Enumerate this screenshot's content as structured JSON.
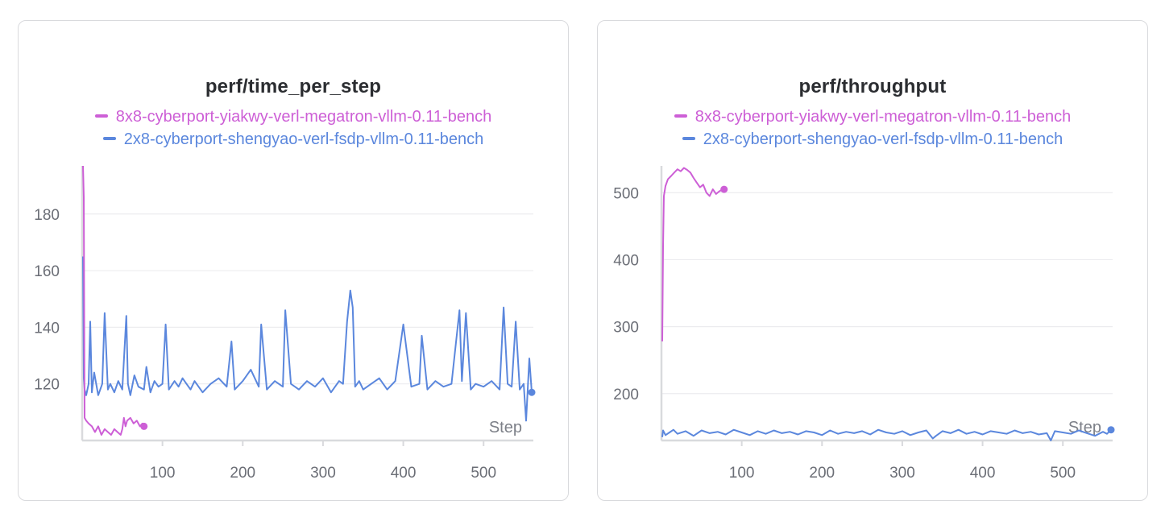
{
  "colors": {
    "series_magenta": "#cd5fd6",
    "series_blue": "#5b87dd",
    "grid": "#ececef",
    "axis": "#d9dadd"
  },
  "chart_data": [
    {
      "type": "line",
      "title": "perf/time_per_step",
      "xlabel": "Step",
      "ylabel": "",
      "xlim": [
        0,
        562
      ],
      "ylim": [
        100,
        197
      ],
      "xticks": [
        100,
        200,
        300,
        400,
        500
      ],
      "yticks": [
        120,
        140,
        160,
        180
      ],
      "grid": true,
      "legend_position": "top-center",
      "series": [
        {
          "name": "8x8-cyberport-yiakwy-verl-megatron-vllm-0.11-bench",
          "color": "#cd5fd6",
          "x": [
            1,
            2,
            3,
            5,
            8,
            12,
            16,
            20,
            24,
            28,
            32,
            36,
            40,
            44,
            48,
            50,
            52,
            54,
            56,
            60,
            64,
            68,
            72,
            75,
            77
          ],
          "y": [
            197,
            186,
            108,
            107,
            106,
            105,
            103,
            105,
            102,
            104,
            103,
            102,
            104,
            103,
            102,
            104,
            108,
            105,
            107,
            108,
            106,
            107,
            105,
            106,
            105
          ]
        },
        {
          "name": "2x8-cyberport-shengyao-verl-fsdp-vllm-0.11-bench",
          "color": "#5b87dd",
          "x": [
            1,
            2,
            3,
            5,
            8,
            10,
            12,
            15,
            20,
            25,
            28,
            32,
            35,
            40,
            45,
            50,
            55,
            57,
            60,
            65,
            70,
            77,
            80,
            85,
            90,
            95,
            100,
            104,
            108,
            115,
            120,
            125,
            130,
            135,
            140,
            150,
            160,
            170,
            180,
            186,
            190,
            200,
            210,
            220,
            223,
            230,
            240,
            250,
            253,
            260,
            270,
            280,
            290,
            300,
            310,
            320,
            325,
            330,
            334,
            337,
            340,
            345,
            350,
            360,
            370,
            380,
            390,
            400,
            410,
            420,
            423,
            430,
            440,
            450,
            460,
            470,
            473,
            478,
            484,
            490,
            500,
            510,
            520,
            525,
            530,
            535,
            540,
            545,
            550,
            553,
            557,
            560
          ],
          "y": [
            165,
            122,
            118,
            116,
            120,
            142,
            117,
            124,
            116,
            120,
            145,
            118,
            120,
            117,
            121,
            118,
            144,
            120,
            116,
            123,
            119,
            118,
            126,
            117,
            121,
            119,
            120,
            141,
            118,
            121,
            119,
            122,
            120,
            118,
            121,
            117,
            120,
            122,
            119,
            135,
            118,
            121,
            125,
            119,
            141,
            118,
            121,
            119,
            146,
            120,
            118,
            121,
            119,
            122,
            117,
            121,
            120,
            142,
            153,
            147,
            119,
            121,
            118,
            120,
            122,
            118,
            121,
            141,
            119,
            120,
            137,
            118,
            121,
            119,
            120,
            146,
            121,
            145,
            118,
            120,
            119,
            121,
            118,
            147,
            120,
            119,
            142,
            118,
            120,
            107,
            129,
            117
          ]
        }
      ]
    },
    {
      "type": "line",
      "title": "perf/throughput",
      "xlabel": "Step",
      "ylabel": "",
      "xlim": [
        0,
        562
      ],
      "ylim": [
        130,
        540
      ],
      "xticks": [
        100,
        200,
        300,
        400,
        500
      ],
      "yticks": [
        200,
        300,
        400,
        500
      ],
      "grid": true,
      "legend_position": "top-center",
      "series": [
        {
          "name": "8x8-cyberport-yiakwy-verl-megatron-vllm-0.11-bench",
          "color": "#cd5fd6",
          "x": [
            1,
            2,
            3,
            5,
            8,
            12,
            16,
            20,
            24,
            28,
            32,
            36,
            40,
            44,
            48,
            52,
            56,
            60,
            64,
            68,
            72,
            75,
            78
          ],
          "y": [
            278,
            420,
            495,
            510,
            520,
            525,
            530,
            535,
            532,
            537,
            534,
            530,
            522,
            515,
            508,
            512,
            500,
            495,
            505,
            498,
            502,
            504,
            505
          ]
        },
        {
          "name": "2x8-cyberport-shengyao-verl-fsdp-vllm-0.11-bench",
          "color": "#5b87dd",
          "x": [
            1,
            2,
            5,
            10,
            15,
            20,
            30,
            40,
            50,
            60,
            70,
            80,
            90,
            100,
            110,
            120,
            130,
            140,
            150,
            160,
            170,
            180,
            190,
            200,
            210,
            220,
            230,
            240,
            250,
            260,
            270,
            280,
            290,
            300,
            310,
            320,
            330,
            338,
            342,
            350,
            360,
            370,
            380,
            390,
            400,
            410,
            420,
            430,
            440,
            450,
            460,
            470,
            480,
            485,
            490,
            500,
            510,
            520,
            530,
            540,
            550,
            555,
            560
          ],
          "y": [
            135,
            145,
            138,
            142,
            146,
            140,
            144,
            137,
            145,
            141,
            143,
            139,
            146,
            142,
            138,
            144,
            140,
            145,
            141,
            143,
            139,
            144,
            142,
            138,
            145,
            140,
            143,
            141,
            144,
            139,
            146,
            142,
            140,
            144,
            138,
            142,
            145,
            133,
            137,
            144,
            141,
            146,
            140,
            143,
            139,
            144,
            142,
            140,
            145,
            141,
            143,
            139,
            141,
            130,
            144,
            142,
            140,
            145,
            141,
            137,
            143,
            140,
            146
          ]
        }
      ]
    }
  ]
}
